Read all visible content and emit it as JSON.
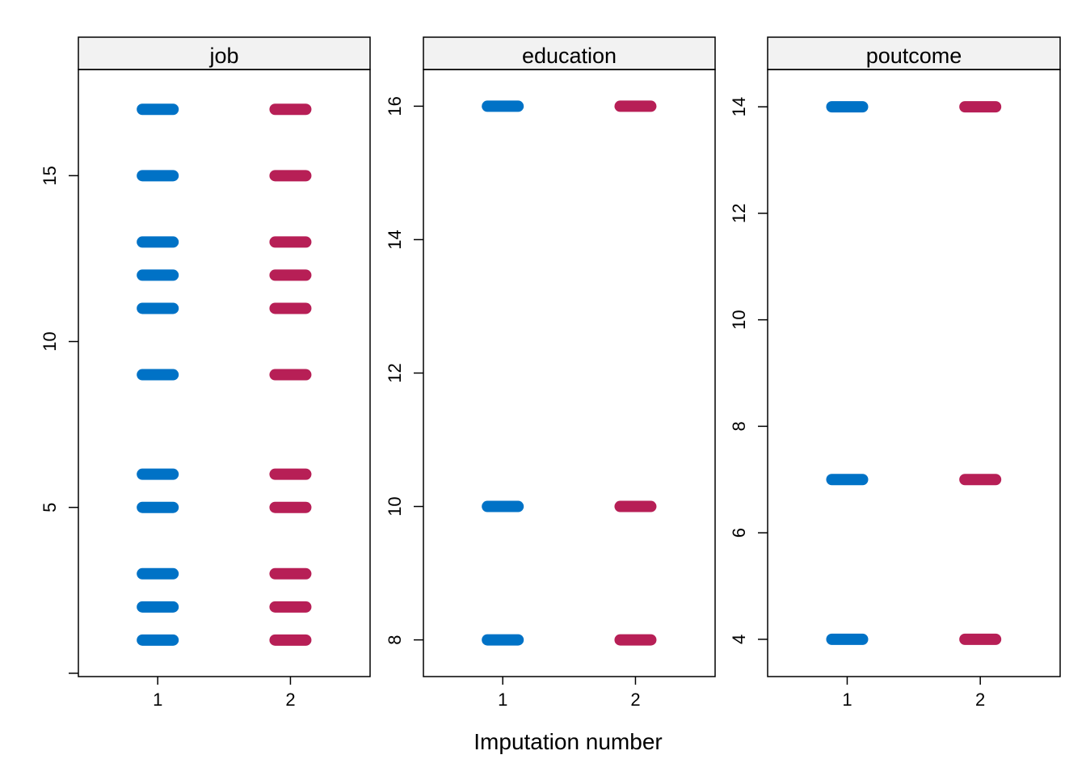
{
  "chart_data": {
    "type": "scatter",
    "xlabel": "Imputation number",
    "colors": {
      "observed": "#0072C6",
      "imputed": "#B71F56"
    },
    "panels": [
      {
        "name": "job",
        "x_ticks": [
          "1",
          "2"
        ],
        "ylim": [
          -0.1,
          18.2
        ],
        "y_ticks": [
          0,
          5,
          10,
          15
        ],
        "y_tick_labels": [
          "",
          "5",
          "10",
          "15"
        ],
        "series": [
          {
            "x": "1",
            "values": [
              1,
              2,
              3,
              5,
              6,
              9,
              11,
              12,
              13,
              15,
              17
            ]
          },
          {
            "x": "2",
            "values": [
              1,
              2,
              3,
              5,
              6,
              9,
              11,
              12,
              13,
              15,
              17
            ]
          }
        ]
      },
      {
        "name": "education",
        "x_ticks": [
          "1",
          "2"
        ],
        "ylim": [
          7.45,
          16.55
        ],
        "y_ticks": [
          8,
          10,
          12,
          14,
          16
        ],
        "y_tick_labels": [
          "8",
          "10",
          "12",
          "14",
          "16"
        ],
        "series": [
          {
            "x": "1",
            "values": [
              8,
              10,
              16
            ]
          },
          {
            "x": "2",
            "values": [
              8,
              10,
              16
            ]
          }
        ]
      },
      {
        "name": "poutcome",
        "x_ticks": [
          "1",
          "2"
        ],
        "ylim": [
          3.3,
          14.7
        ],
        "y_ticks": [
          4,
          6,
          8,
          10,
          12,
          14
        ],
        "y_tick_labels": [
          "4",
          "6",
          "8",
          "10",
          "12",
          "14"
        ],
        "series": [
          {
            "x": "1",
            "values": [
              4,
              7,
              14
            ]
          },
          {
            "x": "2",
            "values": [
              4,
              7,
              14
            ]
          }
        ]
      }
    ]
  }
}
